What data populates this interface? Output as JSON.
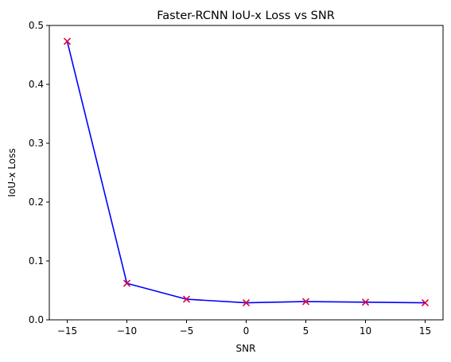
{
  "chart_data": {
    "type": "line",
    "title": "Faster-RCNN IoU-x Loss vs SNR",
    "xlabel": "SNR",
    "ylabel": "IoU-x Loss",
    "xlim": [
      -16.5,
      16.5
    ],
    "ylim": [
      0.0,
      0.5
    ],
    "x_ticks": [
      -15,
      -10,
      -5,
      0,
      5,
      10,
      15
    ],
    "x_tick_labels": [
      "−15",
      "−10",
      "−5",
      "0",
      "5",
      "10",
      "15"
    ],
    "y_ticks": [
      0.0,
      0.1,
      0.2,
      0.3,
      0.4,
      0.5
    ],
    "y_tick_labels": [
      "0.0",
      "0.1",
      "0.2",
      "0.3",
      "0.4",
      "0.5"
    ],
    "grid": false,
    "series": [
      {
        "x": [
          -15,
          -10,
          -5,
          0,
          5,
          10,
          15
        ],
        "y": [
          0.473,
          0.062,
          0.035,
          0.029,
          0.031,
          0.03,
          0.029
        ],
        "line_color": "#0000ff",
        "marker": "x",
        "marker_color": "#e0003c"
      }
    ]
  }
}
